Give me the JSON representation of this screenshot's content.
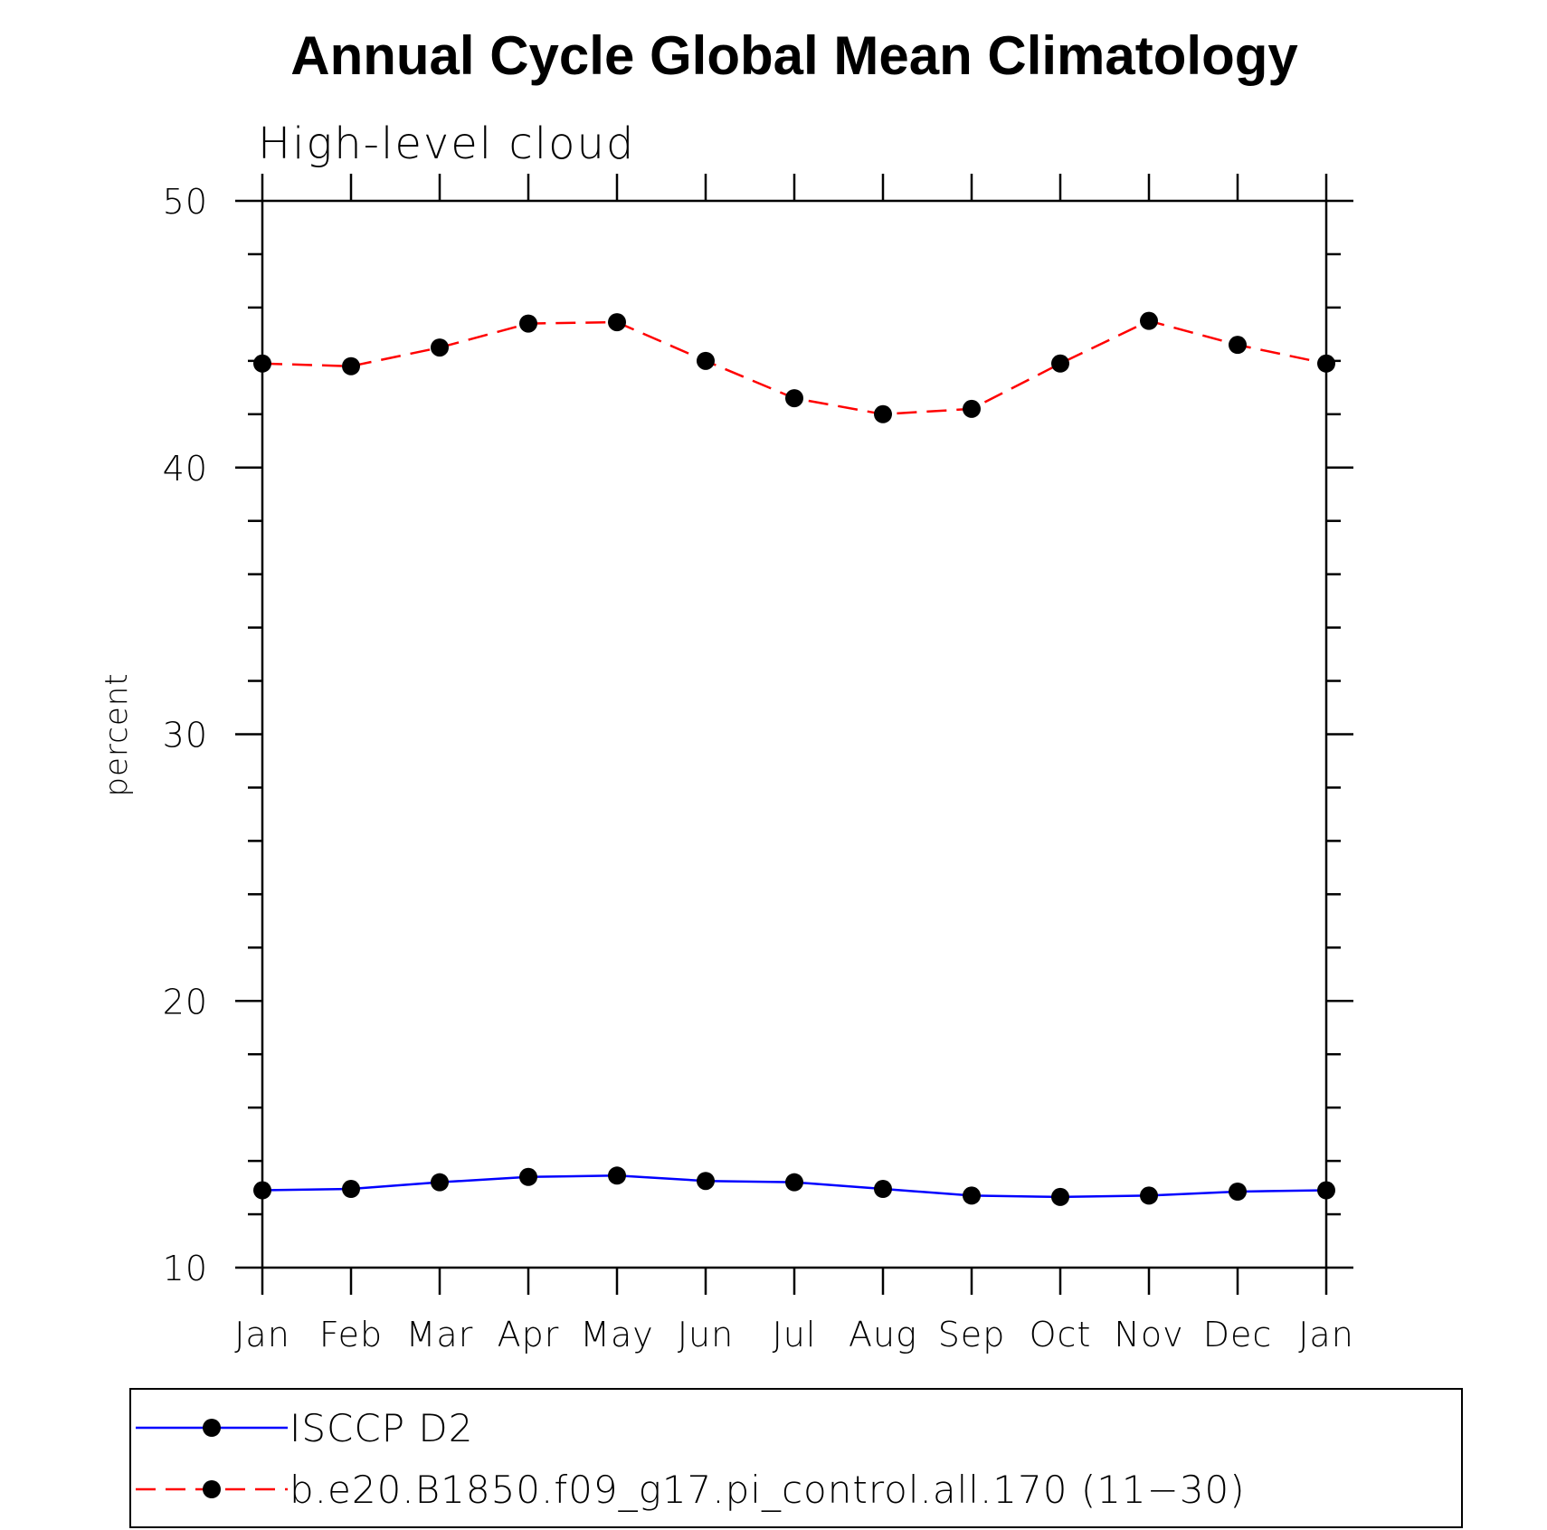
{
  "chart_data": {
    "type": "line",
    "title": "Annual Cycle Global Mean Climatology",
    "subtitle": "High-level cloud",
    "xlabel": "",
    "ylabel": "percent",
    "ylim": [
      10,
      50
    ],
    "y_major_ticks": [
      10,
      20,
      30,
      40,
      50
    ],
    "y_minor_step": 2,
    "grid": false,
    "legend_position": "bottom",
    "categories": [
      "Jan",
      "Feb",
      "Mar",
      "Apr",
      "May",
      "Jun",
      "Jul",
      "Aug",
      "Sep",
      "Oct",
      "Nov",
      "Dec",
      "Jan"
    ],
    "series": [
      {
        "name": "ISCCP D2",
        "color": "#0000ff",
        "line_style": "solid",
        "marker": "filled-circle",
        "values": [
          12.9,
          12.95,
          13.2,
          13.4,
          13.45,
          13.25,
          13.2,
          12.95,
          12.7,
          12.65,
          12.7,
          12.85,
          12.9
        ]
      },
      {
        "name": "b.e20.B1850.f09_g17.pi_control.all.170 (11−30)",
        "color": "#ff0000",
        "line_style": "dashed",
        "marker": "filled-circle",
        "values": [
          43.9,
          43.8,
          44.5,
          45.4,
          45.45,
          44.0,
          42.6,
          42.0,
          42.2,
          43.9,
          45.5,
          44.6,
          43.9
        ]
      }
    ]
  }
}
